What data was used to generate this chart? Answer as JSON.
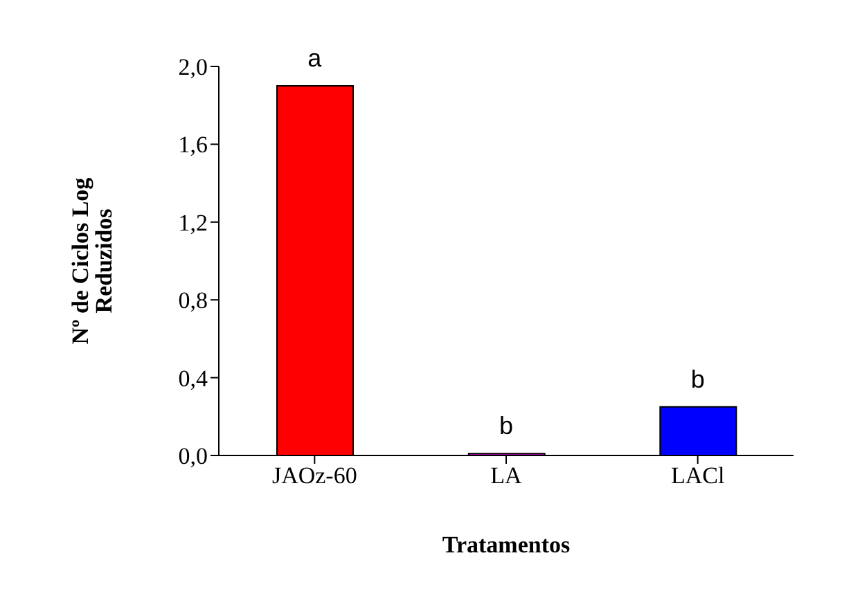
{
  "chart_data": {
    "type": "bar",
    "xlabel": "Tratamentos",
    "ylabel": "Nº de Ciclos Log Reduzidos",
    "categories": [
      "JAOz-60",
      "LA",
      "LACl"
    ],
    "values": [
      1.9,
      0.01,
      0.25
    ],
    "colors": [
      "#ff0000",
      "#cc00cc",
      "#0000ff"
    ],
    "ylim": [
      0,
      2
    ],
    "yticks": [
      {
        "value": 0,
        "label": "0,0"
      },
      {
        "value": 0.4,
        "label": "0,4"
      },
      {
        "value": 0.8,
        "label": "0,8"
      },
      {
        "value": 1.2,
        "label": "1,2"
      },
      {
        "value": 1.6,
        "label": "1,6"
      },
      {
        "value": 2,
        "label": "2,0"
      }
    ],
    "annotations": [
      {
        "text": "a",
        "x": "JAOz-60",
        "y": 1.9
      },
      {
        "text": "b",
        "x": "LA",
        "y": 0.01
      },
      {
        "text": "b",
        "x": "LACl",
        "y": 0.25
      }
    ],
    "grid": false,
    "legend": false
  }
}
